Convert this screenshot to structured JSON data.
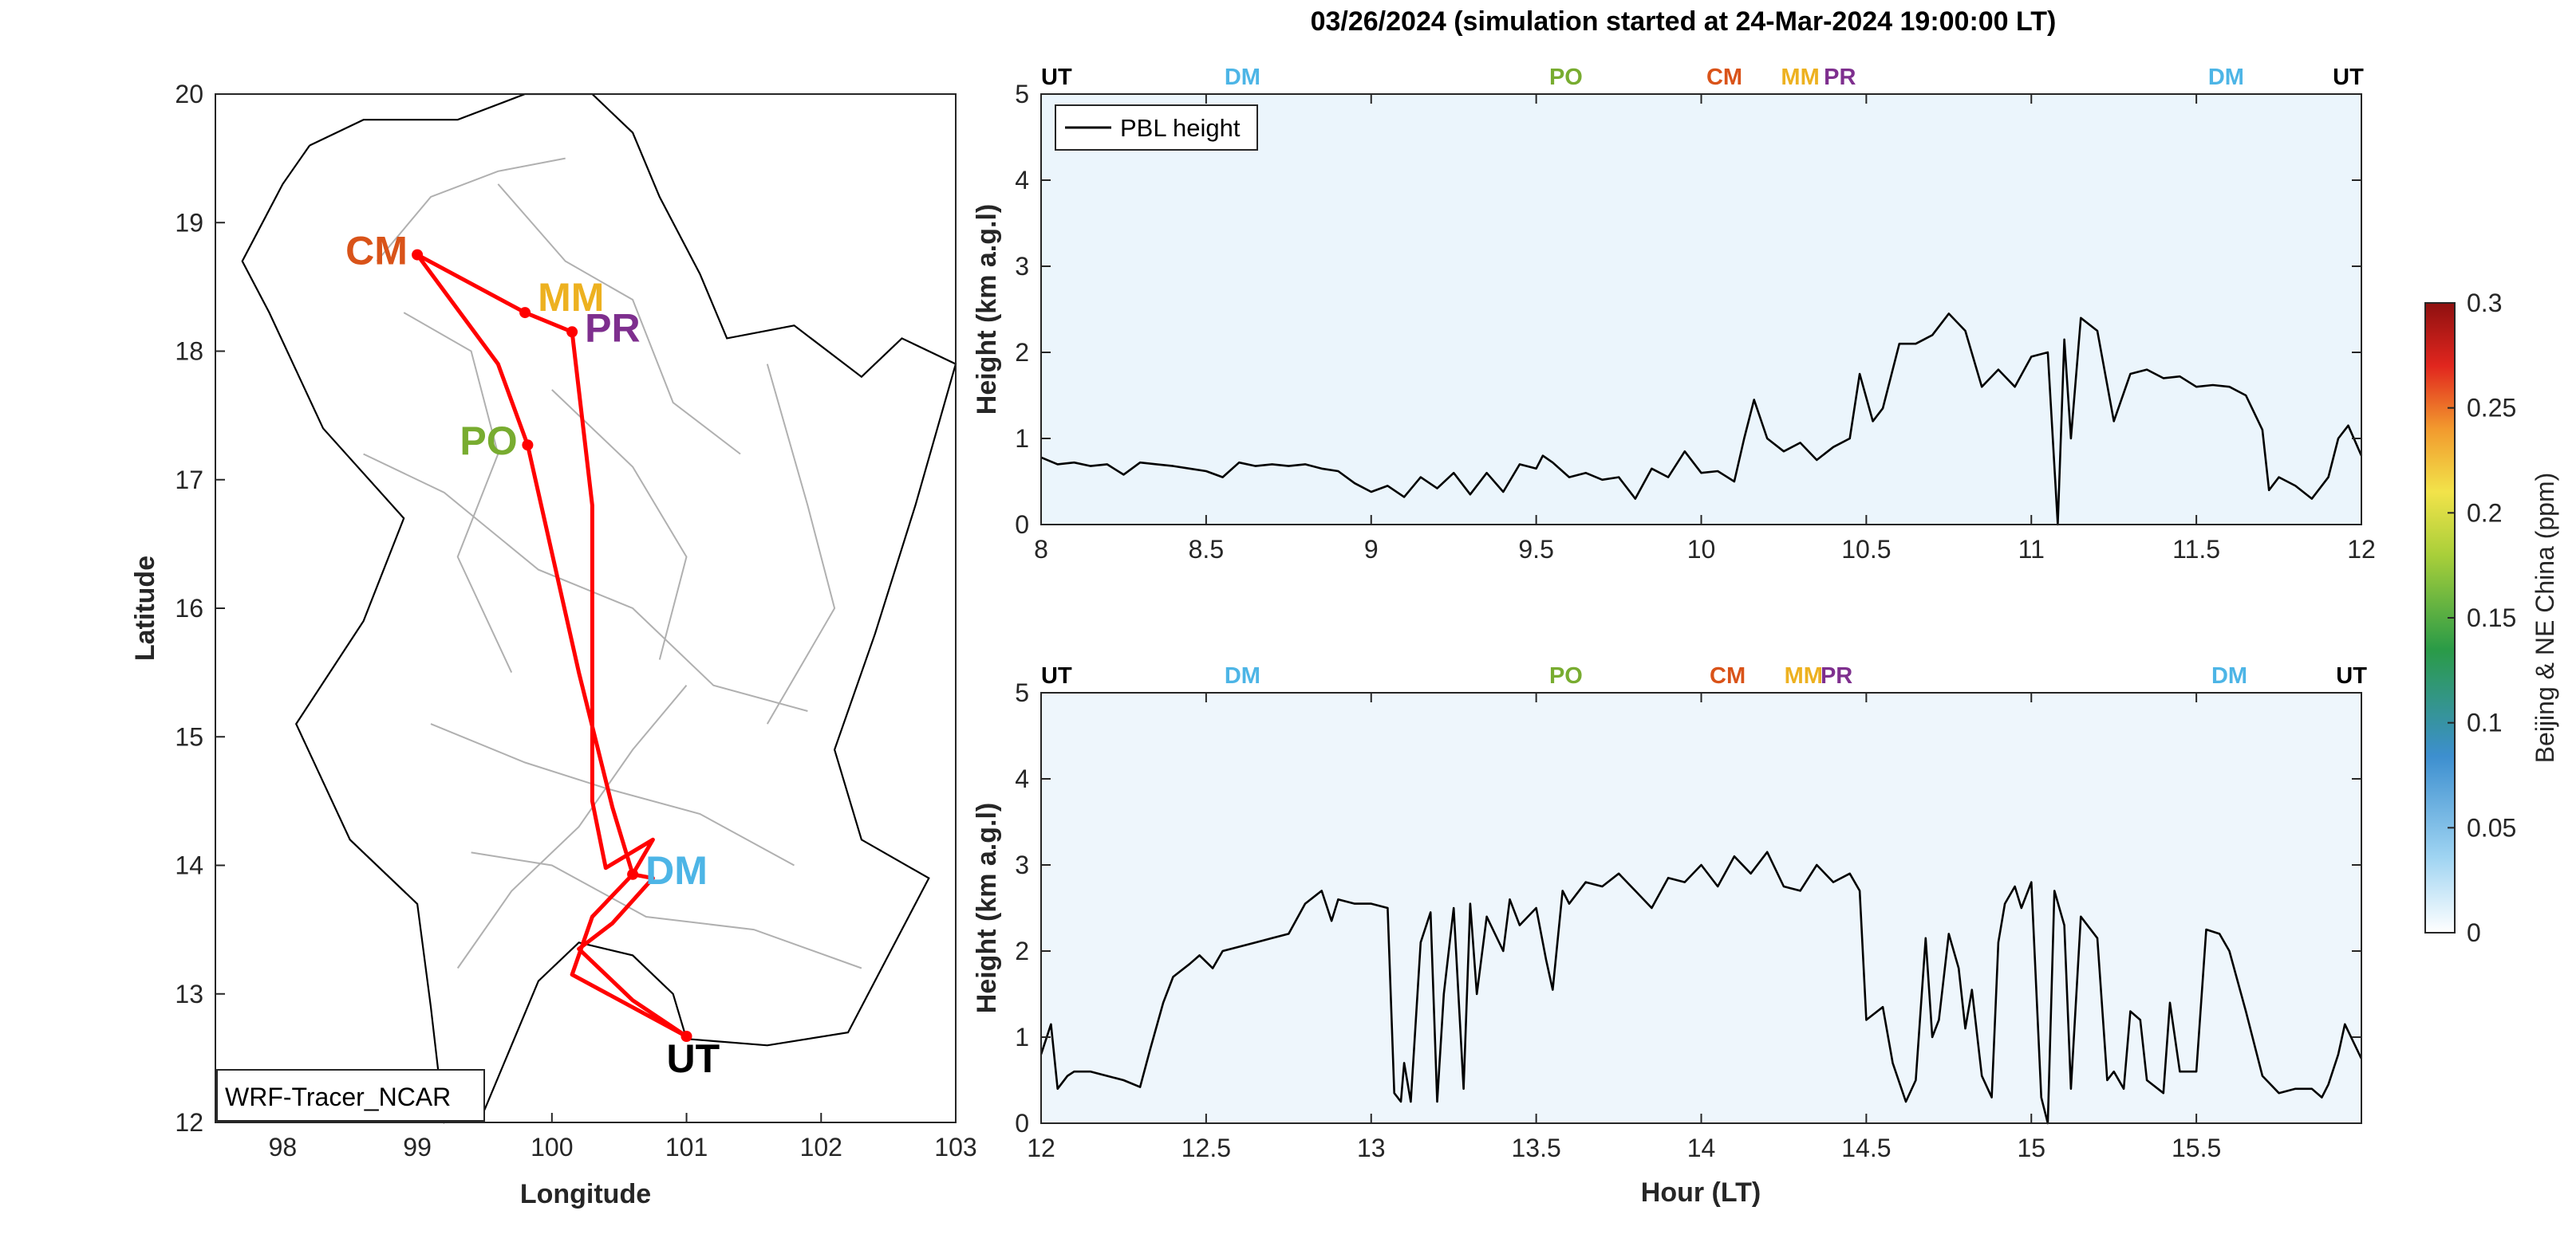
{
  "figure_title": "03/26/2024 (simulation started at 24-Mar-2024 19:00:00 LT)",
  "colors": {
    "UT": "#000000",
    "DM": "#4db5e6",
    "PO": "#78ac30",
    "CM": "#d95319",
    "MM": "#edb120",
    "PR": "#7e2f8e",
    "track": "#ff0000",
    "border": "#b0b0b0",
    "pbl": "#000000",
    "tracer_bg": "#eaf4fb"
  },
  "chart_data": [
    {
      "type": "scatter",
      "title": "",
      "xlabel": "Longitude",
      "ylabel": "Latitude",
      "xlim": [
        97.5,
        103
      ],
      "ylim": [
        12,
        20
      ],
      "xticks": [
        98,
        99,
        100,
        101,
        102,
        103
      ],
      "yticks": [
        12,
        13,
        14,
        15,
        16,
        17,
        18,
        19,
        20
      ],
      "model_label": "WRF-Tracer_NCAR",
      "sites": [
        {
          "name": "CM",
          "lon": 99.0,
          "lat": 18.75
        },
        {
          "name": "MM",
          "lon": 99.8,
          "lat": 18.3
        },
        {
          "name": "PR",
          "lon": 100.15,
          "lat": 18.15
        },
        {
          "name": "PO",
          "lon": 99.82,
          "lat": 17.27
        },
        {
          "name": "DM",
          "lon": 100.6,
          "lat": 13.93
        },
        {
          "name": "UT",
          "lon": 101.0,
          "lat": 12.67
        }
      ],
      "track": [
        [
          101.0,
          12.67
        ],
        [
          100.6,
          12.95
        ],
        [
          100.2,
          13.35
        ],
        [
          100.45,
          13.55
        ],
        [
          100.75,
          13.9
        ],
        [
          100.6,
          13.93
        ],
        [
          100.45,
          14.45
        ],
        [
          100.2,
          15.5
        ],
        [
          99.82,
          17.27
        ],
        [
          99.6,
          17.9
        ],
        [
          99.0,
          18.75
        ],
        [
          99.8,
          18.3
        ],
        [
          100.15,
          18.15
        ],
        [
          100.3,
          16.8
        ],
        [
          100.3,
          14.5
        ],
        [
          100.4,
          13.98
        ],
        [
          100.75,
          14.2
        ],
        [
          100.6,
          13.93
        ],
        [
          100.3,
          13.6
        ],
        [
          100.15,
          13.15
        ],
        [
          101.0,
          12.67
        ]
      ]
    },
    {
      "type": "line",
      "title": "",
      "xlabel": "",
      "ylabel": "Height (km a.g.l)",
      "xlim": [
        8,
        12
      ],
      "ylim": [
        0,
        5
      ],
      "xticks": [
        8,
        8.5,
        9,
        9.5,
        10,
        10.5,
        11,
        11.5,
        12
      ],
      "yticks": [
        0,
        1,
        2,
        3,
        4,
        5
      ],
      "legend": "PBL height",
      "legend_position": "top-left",
      "site_markers": [
        {
          "name": "UT",
          "x": 8.0
        },
        {
          "name": "DM",
          "x": 8.61
        },
        {
          "name": "PO",
          "x": 9.59
        },
        {
          "name": "CM",
          "x": 10.07
        },
        {
          "name": "MM",
          "x": 10.3
        },
        {
          "name": "PR",
          "x": 10.42
        },
        {
          "name": "DM",
          "x": 11.59
        },
        {
          "name": "UT",
          "x": 11.96
        }
      ],
      "series": [
        {
          "name": "PBL height",
          "points": [
            [
              8.0,
              0.78
            ],
            [
              8.05,
              0.7
            ],
            [
              8.1,
              0.72
            ],
            [
              8.15,
              0.68
            ],
            [
              8.2,
              0.7
            ],
            [
              8.25,
              0.58
            ],
            [
              8.3,
              0.72
            ],
            [
              8.35,
              0.7
            ],
            [
              8.4,
              0.68
            ],
            [
              8.45,
              0.65
            ],
            [
              8.5,
              0.62
            ],
            [
              8.55,
              0.55
            ],
            [
              8.6,
              0.72
            ],
            [
              8.65,
              0.68
            ],
            [
              8.7,
              0.7
            ],
            [
              8.75,
              0.68
            ],
            [
              8.8,
              0.7
            ],
            [
              8.85,
              0.65
            ],
            [
              8.9,
              0.62
            ],
            [
              8.95,
              0.48
            ],
            [
              9.0,
              0.38
            ],
            [
              9.05,
              0.45
            ],
            [
              9.1,
              0.32
            ],
            [
              9.15,
              0.55
            ],
            [
              9.2,
              0.42
            ],
            [
              9.25,
              0.6
            ],
            [
              9.3,
              0.35
            ],
            [
              9.35,
              0.6
            ],
            [
              9.4,
              0.38
            ],
            [
              9.45,
              0.7
            ],
            [
              9.5,
              0.65
            ],
            [
              9.52,
              0.8
            ],
            [
              9.55,
              0.72
            ],
            [
              9.6,
              0.55
            ],
            [
              9.65,
              0.6
            ],
            [
              9.7,
              0.52
            ],
            [
              9.75,
              0.55
            ],
            [
              9.8,
              0.3
            ],
            [
              9.85,
              0.65
            ],
            [
              9.9,
              0.55
            ],
            [
              9.95,
              0.85
            ],
            [
              10.0,
              0.6
            ],
            [
              10.05,
              0.62
            ],
            [
              10.1,
              0.5
            ],
            [
              10.13,
              1.0
            ],
            [
              10.16,
              1.45
            ],
            [
              10.2,
              1.0
            ],
            [
              10.25,
              0.85
            ],
            [
              10.3,
              0.95
            ],
            [
              10.35,
              0.75
            ],
            [
              10.4,
              0.9
            ],
            [
              10.45,
              1.0
            ],
            [
              10.48,
              1.75
            ],
            [
              10.52,
              1.2
            ],
            [
              10.55,
              1.35
            ],
            [
              10.6,
              2.1
            ],
            [
              10.65,
              2.1
            ],
            [
              10.7,
              2.2
            ],
            [
              10.75,
              2.45
            ],
            [
              10.8,
              2.25
            ],
            [
              10.85,
              1.6
            ],
            [
              10.9,
              1.8
            ],
            [
              10.95,
              1.6
            ],
            [
              11.0,
              1.95
            ],
            [
              11.05,
              2.0
            ],
            [
              11.08,
              0.0
            ],
            [
              11.1,
              2.15
            ],
            [
              11.12,
              1.0
            ],
            [
              11.15,
              2.4
            ],
            [
              11.2,
              2.25
            ],
            [
              11.25,
              1.2
            ],
            [
              11.3,
              1.75
            ],
            [
              11.35,
              1.8
            ],
            [
              11.4,
              1.7
            ],
            [
              11.45,
              1.72
            ],
            [
              11.5,
              1.6
            ],
            [
              11.55,
              1.62
            ],
            [
              11.6,
              1.6
            ],
            [
              11.65,
              1.5
            ],
            [
              11.7,
              1.1
            ],
            [
              11.72,
              0.4
            ],
            [
              11.75,
              0.55
            ],
            [
              11.8,
              0.45
            ],
            [
              11.85,
              0.3
            ],
            [
              11.9,
              0.55
            ],
            [
              11.93,
              1.0
            ],
            [
              11.96,
              1.15
            ],
            [
              12.0,
              0.8
            ]
          ]
        }
      ],
      "tracer_colorbar": {
        "label": "Beijing & NE China (ppm)",
        "range": [
          0,
          0.3
        ],
        "ticks": [
          0,
          0.05,
          0.1,
          0.15,
          0.2,
          0.25,
          0.3
        ]
      }
    },
    {
      "type": "line",
      "title": "",
      "xlabel": "Hour (LT)",
      "ylabel": "Height (km a.g.l)",
      "xlim": [
        12,
        16
      ],
      "ylim": [
        0,
        5
      ],
      "xticks": [
        12,
        12.5,
        13,
        13.5,
        14,
        14.5,
        15,
        15.5
      ],
      "yticks": [
        0,
        1,
        2,
        3,
        4,
        5
      ],
      "site_markers": [
        {
          "name": "UT",
          "x": 12.0
        },
        {
          "name": "DM",
          "x": 12.61
        },
        {
          "name": "PO",
          "x": 13.59
        },
        {
          "name": "CM",
          "x": 14.08
        },
        {
          "name": "MM",
          "x": 14.31
        },
        {
          "name": "PR",
          "x": 14.41
        },
        {
          "name": "DM",
          "x": 15.6
        },
        {
          "name": "UT",
          "x": 15.97
        }
      ],
      "series": [
        {
          "name": "PBL height",
          "points": [
            [
              12.0,
              0.8
            ],
            [
              12.03,
              1.15
            ],
            [
              12.05,
              0.4
            ],
            [
              12.08,
              0.55
            ],
            [
              12.1,
              0.6
            ],
            [
              12.15,
              0.6
            ],
            [
              12.2,
              0.55
            ],
            [
              12.25,
              0.5
            ],
            [
              12.3,
              0.42
            ],
            [
              12.33,
              0.85
            ],
            [
              12.37,
              1.4
            ],
            [
              12.4,
              1.7
            ],
            [
              12.45,
              1.85
            ],
            [
              12.48,
              1.95
            ],
            [
              12.52,
              1.8
            ],
            [
              12.55,
              2.0
            ],
            [
              12.6,
              2.05
            ],
            [
              12.65,
              2.1
            ],
            [
              12.7,
              2.15
            ],
            [
              12.75,
              2.2
            ],
            [
              12.8,
              2.55
            ],
            [
              12.85,
              2.7
            ],
            [
              12.88,
              2.35
            ],
            [
              12.9,
              2.6
            ],
            [
              12.95,
              2.55
            ],
            [
              13.0,
              2.55
            ],
            [
              13.05,
              2.5
            ],
            [
              13.07,
              0.35
            ],
            [
              13.09,
              0.25
            ],
            [
              13.1,
              0.7
            ],
            [
              13.12,
              0.25
            ],
            [
              13.15,
              2.1
            ],
            [
              13.18,
              2.45
            ],
            [
              13.2,
              0.25
            ],
            [
              13.22,
              1.5
            ],
            [
              13.25,
              2.5
            ],
            [
              13.28,
              0.4
            ],
            [
              13.3,
              2.55
            ],
            [
              13.32,
              1.5
            ],
            [
              13.35,
              2.4
            ],
            [
              13.4,
              2.0
            ],
            [
              13.42,
              2.6
            ],
            [
              13.45,
              2.3
            ],
            [
              13.5,
              2.5
            ],
            [
              13.53,
              1.9
            ],
            [
              13.55,
              1.55
            ],
            [
              13.58,
              2.7
            ],
            [
              13.6,
              2.55
            ],
            [
              13.65,
              2.8
            ],
            [
              13.7,
              2.75
            ],
            [
              13.75,
              2.9
            ],
            [
              13.8,
              2.7
            ],
            [
              13.85,
              2.5
            ],
            [
              13.9,
              2.85
            ],
            [
              13.95,
              2.8
            ],
            [
              14.0,
              3.0
            ],
            [
              14.05,
              2.75
            ],
            [
              14.1,
              3.1
            ],
            [
              14.15,
              2.9
            ],
            [
              14.2,
              3.15
            ],
            [
              14.25,
              2.75
            ],
            [
              14.3,
              2.7
            ],
            [
              14.35,
              3.0
            ],
            [
              14.4,
              2.8
            ],
            [
              14.45,
              2.9
            ],
            [
              14.48,
              2.7
            ],
            [
              14.5,
              1.2
            ],
            [
              14.55,
              1.35
            ],
            [
              14.58,
              0.7
            ],
            [
              14.62,
              0.25
            ],
            [
              14.65,
              0.5
            ],
            [
              14.68,
              2.15
            ],
            [
              14.7,
              1.0
            ],
            [
              14.72,
              1.2
            ],
            [
              14.75,
              2.2
            ],
            [
              14.78,
              1.8
            ],
            [
              14.8,
              1.1
            ],
            [
              14.82,
              1.55
            ],
            [
              14.85,
              0.55
            ],
            [
              14.88,
              0.3
            ],
            [
              14.9,
              2.1
            ],
            [
              14.92,
              2.55
            ],
            [
              14.95,
              2.75
            ],
            [
              14.97,
              2.5
            ],
            [
              15.0,
              2.8
            ],
            [
              15.03,
              0.3
            ],
            [
              15.05,
              0.0
            ],
            [
              15.07,
              2.7
            ],
            [
              15.1,
              2.3
            ],
            [
              15.12,
              0.4
            ],
            [
              15.15,
              2.4
            ],
            [
              15.2,
              2.15
            ],
            [
              15.23,
              0.5
            ],
            [
              15.25,
              0.6
            ],
            [
              15.28,
              0.4
            ],
            [
              15.3,
              1.3
            ],
            [
              15.33,
              1.2
            ],
            [
              15.35,
              0.5
            ],
            [
              15.4,
              0.35
            ],
            [
              15.42,
              1.4
            ],
            [
              15.45,
              0.6
            ],
            [
              15.5,
              0.6
            ],
            [
              15.53,
              2.25
            ],
            [
              15.57,
              2.2
            ],
            [
              15.6,
              2.0
            ],
            [
              15.65,
              1.3
            ],
            [
              15.7,
              0.55
            ],
            [
              15.75,
              0.35
            ],
            [
              15.8,
              0.4
            ],
            [
              15.85,
              0.4
            ],
            [
              15.88,
              0.3
            ],
            [
              15.9,
              0.45
            ],
            [
              15.93,
              0.8
            ],
            [
              15.95,
              1.15
            ],
            [
              16.0,
              0.75
            ]
          ]
        }
      ]
    }
  ]
}
